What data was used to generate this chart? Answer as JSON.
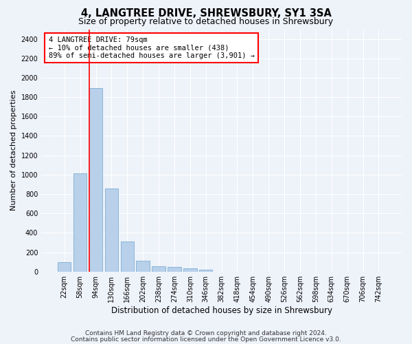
{
  "title": "4, LANGTREE DRIVE, SHREWSBURY, SY1 3SA",
  "subtitle": "Size of property relative to detached houses in Shrewsbury",
  "xlabel": "Distribution of detached houses by size in Shrewsbury",
  "ylabel": "Number of detached properties",
  "bar_color": "#b8d0ea",
  "bar_edge_color": "#7aafd4",
  "bins": [
    "22sqm",
    "58sqm",
    "94sqm",
    "130sqm",
    "166sqm",
    "202sqm",
    "238sqm",
    "274sqm",
    "310sqm",
    "346sqm",
    "382sqm",
    "418sqm",
    "454sqm",
    "490sqm",
    "526sqm",
    "562sqm",
    "598sqm",
    "634sqm",
    "670sqm",
    "706sqm",
    "742sqm"
  ],
  "values": [
    95,
    1010,
    1890,
    860,
    310,
    115,
    57,
    50,
    30,
    20,
    0,
    0,
    0,
    0,
    0,
    0,
    0,
    0,
    0,
    0,
    0
  ],
  "annotation_line1": "4 LANGTREE DRIVE: 79sqm",
  "annotation_line2": "← 10% of detached houses are smaller (438)",
  "annotation_line3": "89% of semi-detached houses are larger (3,901) →",
  "ylim": [
    0,
    2500
  ],
  "yticks": [
    0,
    200,
    400,
    600,
    800,
    1000,
    1200,
    1400,
    1600,
    1800,
    2000,
    2200,
    2400
  ],
  "footer1": "Contains HM Land Registry data © Crown copyright and database right 2024.",
  "footer2": "Contains public sector information licensed under the Open Government Licence v3.0.",
  "bg_color": "#eef2f9",
  "plot_bg_color": "#eef2f9",
  "grid_color": "#ffffff",
  "title_fontsize": 10.5,
  "subtitle_fontsize": 9,
  "xlabel_fontsize": 8.5,
  "ylabel_fontsize": 8,
  "tick_fontsize": 7,
  "annotation_fontsize": 7.5,
  "footer_fontsize": 6.5
}
